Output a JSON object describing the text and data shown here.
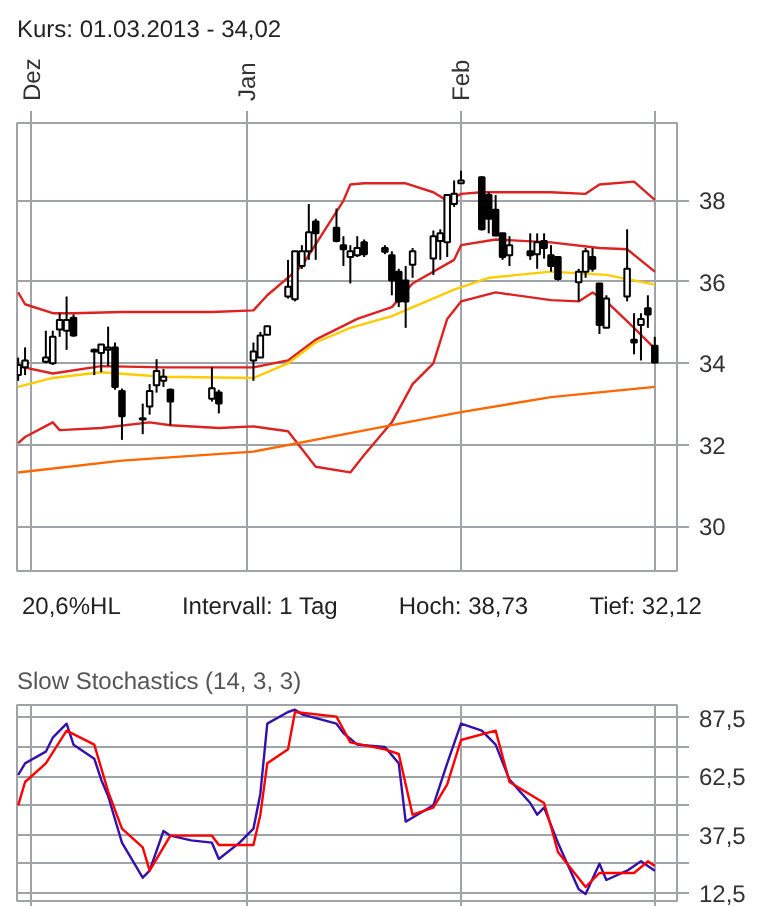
{
  "chart_data": [
    {
      "type": "candlestick",
      "title": "Kurs: 01.03.2013 - 34,02",
      "annotations": [
        "20,6%HL",
        "Intervall: 1 Tag",
        "Hoch: 38,73",
        "Tief: 32,12"
      ],
      "x": [
        "2012-11-29",
        "2012-11-30",
        "2012-12-03",
        "2012-12-04",
        "2012-12-05",
        "2012-12-06",
        "2012-12-07",
        "2012-12-10",
        "2012-12-11",
        "2012-12-12",
        "2012-12-13",
        "2012-12-14",
        "2012-12-17",
        "2012-12-18",
        "2012-12-19",
        "2012-12-20",
        "2012-12-21",
        "2012-12-27",
        "2012-12-28",
        "2013-01-02",
        "2013-01-03",
        "2013-01-04",
        "2013-01-07",
        "2013-01-08",
        "2013-01-09",
        "2013-01-10",
        "2013-01-11",
        "2013-01-14",
        "2013-01-15",
        "2013-01-16",
        "2013-01-17",
        "2013-01-18",
        "2013-01-21",
        "2013-01-22",
        "2013-01-23",
        "2013-01-24",
        "2013-01-25",
        "2013-01-28",
        "2013-01-29",
        "2013-01-30",
        "2013-01-31",
        "2013-02-01",
        "2013-02-04",
        "2013-02-05",
        "2013-02-06",
        "2013-02-07",
        "2013-02-08",
        "2013-02-11",
        "2013-02-12",
        "2013-02-13",
        "2013-02-14",
        "2013-02-15",
        "2013-02-18",
        "2013-02-19",
        "2013-02-20",
        "2013-02-21",
        "2013-02-22",
        "2013-02-25",
        "2013-02-26",
        "2013-02-27",
        "2013-02-28",
        "2013-03-01"
      ],
      "ohlc": [
        [
          33.71,
          34.14,
          33.57,
          33.96
        ],
        [
          33.9,
          34.39,
          33.71,
          34.07
        ],
        [
          34.04,
          34.8,
          34.0,
          34.14
        ],
        [
          34.0,
          34.8,
          33.96,
          34.65
        ],
        [
          34.83,
          35.23,
          34.65,
          35.06
        ],
        [
          34.8,
          35.64,
          34.33,
          35.06
        ],
        [
          35.12,
          35.2,
          34.65,
          34.68
        ],
        [
          34.33,
          34.36,
          33.71,
          34.29
        ],
        [
          34.25,
          34.46,
          33.78,
          34.46
        ],
        [
          34.33,
          34.9,
          33.93,
          34.39
        ],
        [
          34.39,
          34.51,
          33.35,
          33.42
        ],
        [
          33.32,
          33.38,
          32.12,
          32.7
        ],
        [
          32.62,
          33.01,
          32.26,
          32.65
        ],
        [
          32.94,
          33.49,
          32.74,
          33.32
        ],
        [
          33.46,
          34.1,
          33.28,
          33.81
        ],
        [
          33.57,
          33.86,
          33.42,
          33.67
        ],
        [
          33.35,
          33.38,
          32.48,
          33.06
        ],
        [
          33.13,
          33.9,
          33.06,
          33.39
        ],
        [
          33.28,
          33.35,
          32.77,
          33.01
        ],
        [
          34.07,
          34.51,
          33.57,
          34.29
        ],
        [
          34.14,
          34.77,
          34.14,
          34.68
        ],
        [
          34.7,
          34.91,
          34.7,
          34.91
        ],
        [
          35.64,
          36.54,
          35.59,
          35.88
        ],
        [
          35.57,
          36.75,
          35.52,
          36.75
        ],
        [
          36.39,
          36.9,
          36.32,
          36.75
        ],
        [
          36.75,
          37.91,
          36.54,
          37.22
        ],
        [
          37.48,
          37.55,
          36.54,
          37.19
        ],
        [
          37.33,
          37.8,
          36.97,
          37.0
        ],
        [
          36.9,
          37.12,
          36.39,
          36.8
        ],
        [
          36.61,
          36.9,
          35.96,
          36.75
        ],
        [
          36.65,
          37.12,
          36.61,
          36.83
        ],
        [
          36.97,
          37.04,
          36.61,
          36.68
        ],
        [
          36.83,
          36.9,
          36.68,
          36.74
        ],
        [
          36.65,
          36.75,
          35.67,
          36.03
        ],
        [
          36.25,
          36.32,
          35.38,
          35.52
        ],
        [
          36.03,
          36.39,
          34.87,
          35.52
        ],
        [
          36.42,
          36.83,
          36.1,
          36.75
        ],
        [
          36.57,
          37.26,
          36.17,
          37.12
        ],
        [
          37.0,
          37.29,
          36.54,
          37.19
        ],
        [
          36.97,
          38.13,
          36.61,
          38.13
        ],
        [
          37.91,
          38.49,
          37.84,
          38.16
        ],
        [
          38.42,
          38.73,
          38.42,
          38.49
        ],
        [
          38.57,
          38.59,
          37.26,
          37.29
        ],
        [
          38.13,
          38.2,
          37.19,
          37.55
        ],
        [
          37.77,
          38.13,
          37.12,
          37.14
        ],
        [
          37.19,
          37.19,
          36.54,
          36.61
        ],
        [
          36.65,
          37.12,
          36.39,
          36.9
        ],
        [
          36.75,
          37.19,
          36.54,
          36.65
        ],
        [
          36.68,
          37.19,
          36.32,
          36.97
        ],
        [
          37.0,
          37.19,
          36.57,
          36.83
        ],
        [
          36.65,
          36.9,
          36.25,
          36.39
        ],
        [
          36.61,
          36.61,
          36.03,
          36.07
        ],
        [
          35.99,
          36.32,
          35.52,
          36.25
        ],
        [
          36.25,
          36.83,
          36.1,
          36.75
        ],
        [
          36.61,
          36.83,
          36.25,
          36.32
        ],
        [
          35.96,
          35.96,
          34.72,
          34.94
        ],
        [
          34.87,
          35.67,
          34.87,
          35.59
        ],
        [
          35.64,
          37.29,
          35.52,
          36.32
        ],
        [
          34.58,
          35.23,
          34.22,
          34.51
        ],
        [
          34.94,
          35.23,
          34.07,
          35.09
        ],
        [
          35.35,
          35.67,
          34.87,
          35.2
        ],
        [
          34.43,
          34.65,
          34.0,
          34.02
        ]
      ],
      "series": [
        {
          "type": "line",
          "color": "#dd2222",
          "x": [
            "2012-11-29",
            "2012-11-30",
            "2012-12-04",
            "2012-12-07",
            "2012-12-14",
            "2012-12-27",
            "2013-01-02",
            "2013-01-04",
            "2013-01-09",
            "2013-01-15",
            "2013-01-16",
            "2013-01-18",
            "2013-01-24",
            "2013-01-28",
            "2013-01-30",
            "2013-02-01",
            "2013-02-04",
            "2013-02-14",
            "2013-02-19",
            "2013-02-21",
            "2013-02-26",
            "2013-03-01"
          ],
          "values": [
            35.74,
            35.45,
            35.23,
            35.23,
            35.26,
            35.26,
            35.3,
            35.67,
            36.39,
            37.99,
            38.39,
            38.42,
            38.42,
            38.2,
            37.99,
            38.16,
            38.2,
            38.2,
            38.16,
            38.39,
            38.46,
            38.01
          ]
        },
        {
          "type": "line",
          "color": "#dd2222",
          "x": [
            "2012-11-29",
            "2012-12-04",
            "2012-12-11",
            "2012-12-20",
            "2012-12-27",
            "2013-01-02",
            "2013-01-07",
            "2013-01-11",
            "2013-01-17",
            "2013-01-22",
            "2013-01-25",
            "2013-01-31",
            "2013-02-01",
            "2013-02-06",
            "2013-02-14",
            "2013-02-21",
            "2013-02-25",
            "2013-03-01"
          ],
          "values": [
            33.93,
            33.75,
            33.93,
            33.9,
            33.9,
            33.9,
            34.07,
            34.58,
            35.09,
            35.38,
            35.96,
            36.54,
            36.9,
            37.04,
            36.97,
            36.83,
            36.8,
            36.25
          ]
        },
        {
          "type": "line",
          "color": "#ffcc00",
          "x": [
            "2012-11-29",
            "2012-12-04",
            "2012-12-11",
            "2012-12-20",
            "2013-01-02",
            "2013-01-07",
            "2013-01-11",
            "2013-01-16",
            "2013-01-22",
            "2013-01-31",
            "2013-02-05",
            "2013-02-14",
            "2013-02-22",
            "2013-03-01"
          ],
          "values": [
            33.42,
            33.64,
            33.78,
            33.67,
            33.64,
            34.0,
            34.51,
            34.87,
            35.16,
            35.81,
            36.1,
            36.25,
            36.17,
            35.93
          ]
        },
        {
          "type": "line",
          "color": "#dd2222",
          "x": [
            "2012-11-29",
            "2012-11-30",
            "2012-12-04",
            "2012-12-05",
            "2012-12-11",
            "2012-12-18",
            "2012-12-21",
            "2012-12-28",
            "2013-01-02",
            "2013-01-07",
            "2013-01-11",
            "2013-01-16",
            "2013-01-18",
            "2013-01-22",
            "2013-01-25",
            "2013-01-28",
            "2013-01-30",
            "2013-02-01",
            "2013-02-06",
            "2013-02-14",
            "2013-02-18",
            "2013-02-20",
            "2013-02-22",
            "2013-02-26",
            "2013-03-01"
          ],
          "values": [
            32.04,
            32.19,
            32.55,
            32.36,
            32.41,
            32.55,
            32.48,
            32.41,
            32.45,
            32.33,
            31.46,
            31.32,
            31.75,
            32.55,
            33.49,
            34.0,
            35.09,
            35.52,
            35.74,
            35.55,
            35.52,
            35.74,
            35.52,
            34.87,
            34.36
          ]
        },
        {
          "type": "line",
          "color": "#ff6600",
          "x": [
            "2012-11-29",
            "2012-12-14",
            "2013-01-02",
            "2013-01-22",
            "2013-02-01",
            "2013-02-14",
            "2013-03-01"
          ],
          "values": [
            31.32,
            31.61,
            31.83,
            32.48,
            32.8,
            33.17,
            33.42
          ]
        }
      ],
      "xlim": [
        "2012-11-28T20:00",
        "2013-03-04T05:00"
      ],
      "ylim": [
        28.9,
        39.9
      ],
      "xticks": [
        {
          "value": "2012-12-01",
          "label": "Dez"
        },
        {
          "value": "2013-01-01",
          "label": "Jan"
        },
        {
          "value": "2013-02-01",
          "label": "Feb"
        },
        {
          "value": "2013-03-01",
          "label": null
        }
      ],
      "yticks": [
        30,
        32,
        34,
        36,
        38
      ],
      "grid": true
    },
    {
      "type": "line",
      "title": "Slow Stochastics (14, 3, 3)",
      "series": [
        {
          "color": "#3311aa",
          "x": [
            "2012-11-29",
            "2012-11-30",
            "2012-12-03",
            "2012-12-04",
            "2012-12-06",
            "2012-12-07",
            "2012-12-10",
            "2012-12-11",
            "2012-12-12",
            "2012-12-14",
            "2012-12-17",
            "2012-12-18",
            "2012-12-20",
            "2012-12-21",
            "2012-12-24",
            "2012-12-27",
            "2012-12-28",
            "2012-12-31",
            "2013-01-02",
            "2013-01-03",
            "2013-01-04",
            "2013-01-07",
            "2013-01-08",
            "2013-01-09",
            "2013-01-14",
            "2013-01-15",
            "2013-01-17",
            "2013-01-21",
            "2013-01-23",
            "2013-01-24",
            "2013-01-28",
            "2013-01-30",
            "2013-02-01",
            "2013-02-04",
            "2013-02-06",
            "2013-02-08",
            "2013-02-11",
            "2013-02-12",
            "2013-02-13",
            "2013-02-15",
            "2013-02-18",
            "2013-02-19",
            "2013-02-21",
            "2013-02-22",
            "2013-02-25",
            "2013-02-27",
            "2013-03-01"
          ],
          "values": [
            63,
            68,
            73,
            79,
            85,
            76,
            70,
            61,
            54,
            34,
            19,
            22,
            39,
            37,
            35,
            34,
            27,
            34,
            40,
            55,
            85,
            90,
            91,
            89,
            85,
            81,
            76,
            75,
            68,
            43,
            50,
            68,
            85,
            82,
            76,
            61,
            51,
            46,
            49,
            34,
            14,
            12,
            25,
            18,
            22,
            26,
            22
          ]
        },
        {
          "color": "#ff0000",
          "x": [
            "2012-11-29",
            "2012-11-30",
            "2012-12-03",
            "2012-12-06",
            "2012-12-10",
            "2012-12-12",
            "2012-12-14",
            "2012-12-17",
            "2012-12-18",
            "2012-12-21",
            "2012-12-24",
            "2012-12-27",
            "2012-12-28",
            "2013-01-02",
            "2013-01-03",
            "2013-01-04",
            "2013-01-07",
            "2013-01-08",
            "2013-01-14",
            "2013-01-16",
            "2013-01-21",
            "2013-01-23",
            "2013-01-25",
            "2013-01-28",
            "2013-01-30",
            "2013-02-01",
            "2013-02-06",
            "2013-02-08",
            "2013-02-13",
            "2013-02-14",
            "2013-02-15",
            "2013-02-19",
            "2013-02-21",
            "2013-02-25",
            "2013-02-26",
            "2013-02-28",
            "2013-03-01"
          ],
          "values": [
            50,
            60,
            68,
            82,
            76,
            56,
            40,
            32,
            22,
            37,
            37,
            37,
            33,
            33,
            46,
            68,
            74,
            90,
            88,
            77,
            74,
            72,
            46,
            49,
            59,
            78,
            82,
            60,
            51,
            41,
            30,
            15,
            21,
            21,
            21,
            26,
            24
          ]
        }
      ],
      "xlim": [
        "2012-11-28T20:00",
        "2013-03-04T05:00"
      ],
      "ylim": [
        9,
        93
      ],
      "xticks": [
        {
          "value": "2012-12-01",
          "label": null
        },
        {
          "value": "2013-01-01",
          "label": null
        },
        {
          "value": "2013-02-01",
          "label": null
        },
        {
          "value": "2013-03-01",
          "label": null
        }
      ],
      "yticks": [
        {
          "value": 12.5,
          "label": "12,5"
        },
        {
          "value": 25,
          "label": null
        },
        {
          "value": 37.5,
          "label": "37,5"
        },
        {
          "value": 50,
          "label": null
        },
        {
          "value": 62.5,
          "label": "62,5"
        },
        {
          "value": 75,
          "label": null
        },
        {
          "value": 87.5,
          "label": "87,5"
        }
      ],
      "grid": true,
      "tick_labels": "y"
    }
  ]
}
